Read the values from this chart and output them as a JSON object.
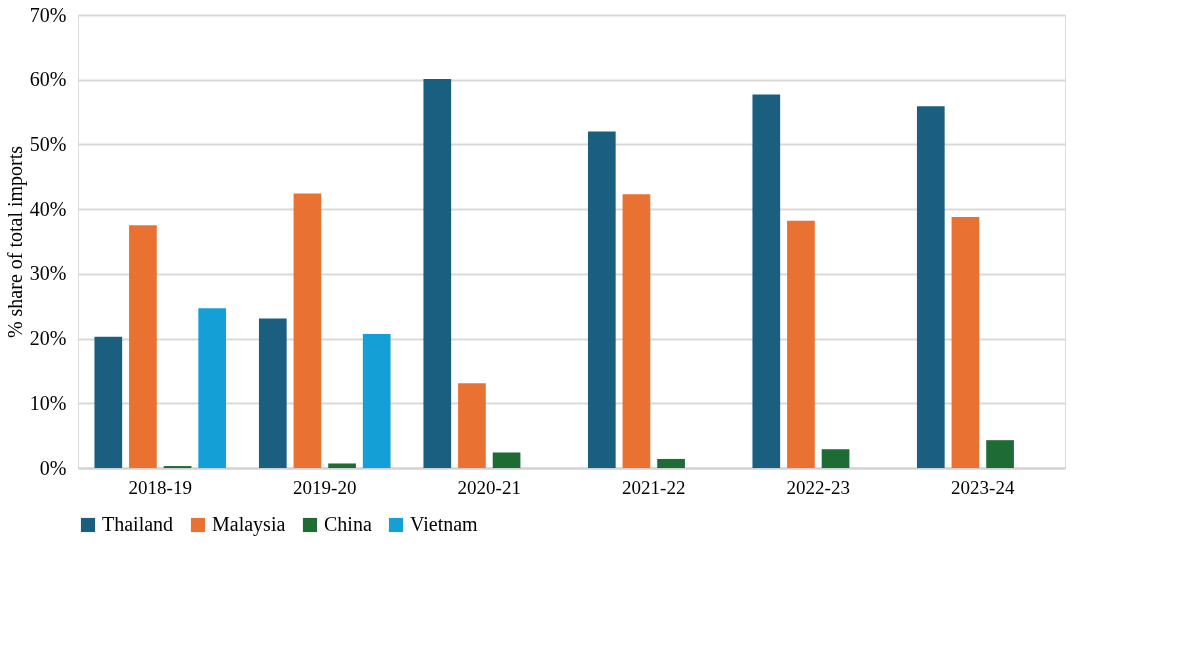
{
  "chart_data": {
    "type": "bar",
    "ylabel": "% share of total imports",
    "categories": [
      "2018-19",
      "2019-20",
      "2020-21",
      "2021-22",
      "2022-23",
      "2023-24"
    ],
    "series": [
      {
        "name": "Thailand",
        "color": "#1a5f80",
        "values": [
          20.3,
          23.1,
          60.1,
          52.0,
          57.7,
          55.9
        ]
      },
      {
        "name": "Malaysia",
        "color": "#e97132",
        "values": [
          37.5,
          42.4,
          13.1,
          42.3,
          38.2,
          38.8
        ]
      },
      {
        "name": "China",
        "color": "#1e6b36",
        "values": [
          0.3,
          0.7,
          2.4,
          1.4,
          2.9,
          4.3
        ]
      },
      {
        "name": "Vietnam",
        "color": "#149fd6",
        "values": [
          24.7,
          20.7,
          null,
          null,
          null,
          null
        ]
      }
    ],
    "ylim": [
      0,
      70
    ],
    "yticks": [
      {
        "value": 0,
        "label": "0%"
      },
      {
        "value": 10,
        "label": "10%"
      },
      {
        "value": 20,
        "label": "20%"
      },
      {
        "value": 30,
        "label": "30%"
      },
      {
        "value": 40,
        "label": "40%"
      },
      {
        "value": 50,
        "label": "50%"
      },
      {
        "value": 60,
        "label": "60%"
      },
      {
        "value": 70,
        "label": "70%"
      }
    ],
    "grid": "y",
    "legend": "bottom"
  }
}
